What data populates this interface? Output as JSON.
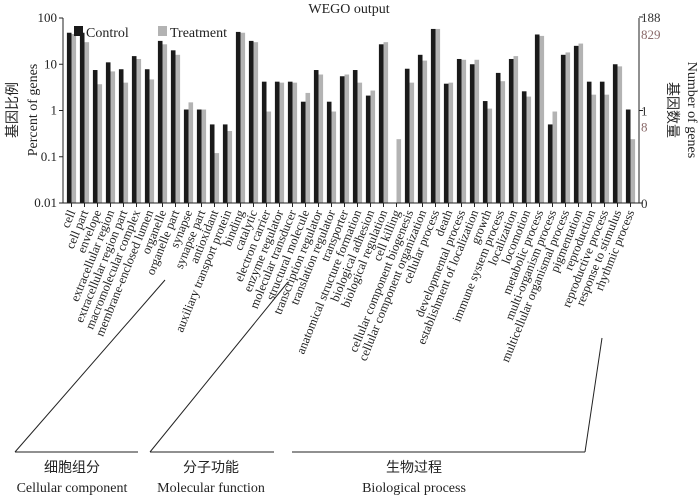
{
  "chart_data": {
    "type": "bar",
    "title": "WEGO output",
    "y_scale": "log",
    "ylabel_zh": "基因比例",
    "ylabel_en": "Percent of genes",
    "ylim": [
      0.01,
      100
    ],
    "yticks": [
      "100",
      "10",
      "1",
      "0.1",
      "0.01"
    ],
    "y2label_zh": "基因数量",
    "y2label_en": "Number of genes",
    "y2ticks": [
      {
        "label": "188",
        "color": "#333333"
      },
      {
        "label": "829",
        "color": "#8b6b6b"
      },
      {
        "label": "1",
        "color": "#333333"
      },
      {
        "label": "8",
        "color": "#8b6b6b"
      },
      {
        "label": "0",
        "color": "#333333"
      }
    ],
    "legend": [
      {
        "name": "Control",
        "color": "#1a1a1a"
      },
      {
        "name": "Treatment",
        "color": "#b3b3b3"
      }
    ],
    "categories": [
      "cell",
      "cell part",
      "envelope",
      "extracellular region",
      "extracellular region part",
      "macromolecular complex",
      "membrane-enclosed lumen",
      "organelle",
      "organelle part",
      "synapse",
      "synapse part",
      "antioxidant",
      "auxiliary transport protein",
      "binding",
      "catalytic",
      "electron carrier",
      "enzyme regulator",
      "molecular transducer",
      "structural molecule",
      "transcription regulator",
      "translation regulator",
      "transporter",
      "anatomical structure formation",
      "biological adhesion",
      "biological regulation",
      "cell killing",
      "cellular component biogenesis",
      "cellular component organization",
      "cellular process",
      "death",
      "developmental process",
      "establishment of localization",
      "growth",
      "immune system process",
      "localization",
      "locomotion",
      "metabolic process",
      "multi-organism process",
      "multicellular organismal process",
      "pigmentation",
      "reproduction",
      "reproductive process",
      "response to stimulus",
      "rhythmic process"
    ],
    "series": [
      {
        "name": "Control",
        "values": [
          48,
          48,
          7.5,
          11,
          7.8,
          15,
          7.8,
          32,
          20,
          1.05,
          1.05,
          0.5,
          0.5,
          50,
          32,
          4.2,
          4.2,
          4.2,
          1.55,
          7.5,
          1.55,
          5.5,
          7.5,
          2.1,
          27,
          0.01,
          8,
          16,
          58,
          3.8,
          13,
          10,
          1.6,
          6.5,
          13,
          2.6,
          44,
          0.5,
          16,
          25,
          4.2,
          4.2,
          10,
          1.05
        ]
      },
      {
        "name": "Treatment",
        "values": [
          45,
          30,
          3.7,
          7,
          4,
          13,
          4.7,
          27,
          16,
          1.5,
          1.05,
          0.12,
          0.36,
          48,
          30,
          0.95,
          4,
          4,
          2.4,
          6,
          0.95,
          6,
          4,
          2.7,
          30,
          0.24,
          4,
          12,
          58,
          4,
          12.5,
          12.5,
          1.1,
          4.3,
          15,
          2,
          41,
          0.95,
          18,
          28,
          2.2,
          2.2,
          9,
          0.24
        ]
      }
    ],
    "groups": [
      {
        "zh": "细胞组分",
        "en": "Cellular component",
        "start": 0,
        "end": 10
      },
      {
        "zh": "分子功能",
        "en": "Molecular function",
        "start": 11,
        "end": 21
      },
      {
        "zh": "生物过程",
        "en": "Biological process",
        "start": 22,
        "end": 43
      }
    ]
  }
}
